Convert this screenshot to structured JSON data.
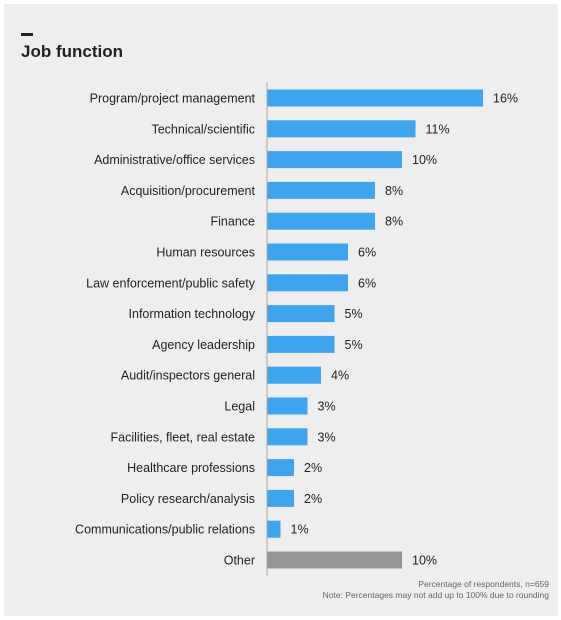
{
  "title": "Job function",
  "colors": {
    "bar": "#3fa4ee",
    "other_bar": "#969696",
    "text": "#222222",
    "axis": "#aaaaaa",
    "background": "#eeeeee"
  },
  "footnote": {
    "line1": "Percentage of respondents, n=659",
    "line2": "Note: Percentages may not add up to 100% due to rounding"
  },
  "chart_data": {
    "type": "bar",
    "orientation": "horizontal",
    "categories": [
      "Program/project management",
      "Technical/scientific",
      "Administrative/office services",
      "Acquisition/procurement",
      "Finance",
      "Human resources",
      "Law enforcement/public safety",
      "Information technology",
      "Agency leadership",
      "Audit/inspectors general",
      "Legal",
      "Facilities, fleet, real estate",
      "Healthcare professions",
      "Policy research/analysis",
      "Communications/public relations",
      "Other"
    ],
    "values": [
      16,
      11,
      10,
      8,
      8,
      6,
      6,
      5,
      5,
      4,
      3,
      3,
      2,
      2,
      1,
      10
    ],
    "value_labels": [
      "16%",
      "11%",
      "10%",
      "8%",
      "8%",
      "6%",
      "6%",
      "5%",
      "5%",
      "4%",
      "3%",
      "3%",
      "2%",
      "2%",
      "1%",
      "10%"
    ],
    "highlight_other": "Other",
    "unit": "%",
    "xlim": [
      0,
      16
    ],
    "grid": false,
    "legend": "none"
  }
}
